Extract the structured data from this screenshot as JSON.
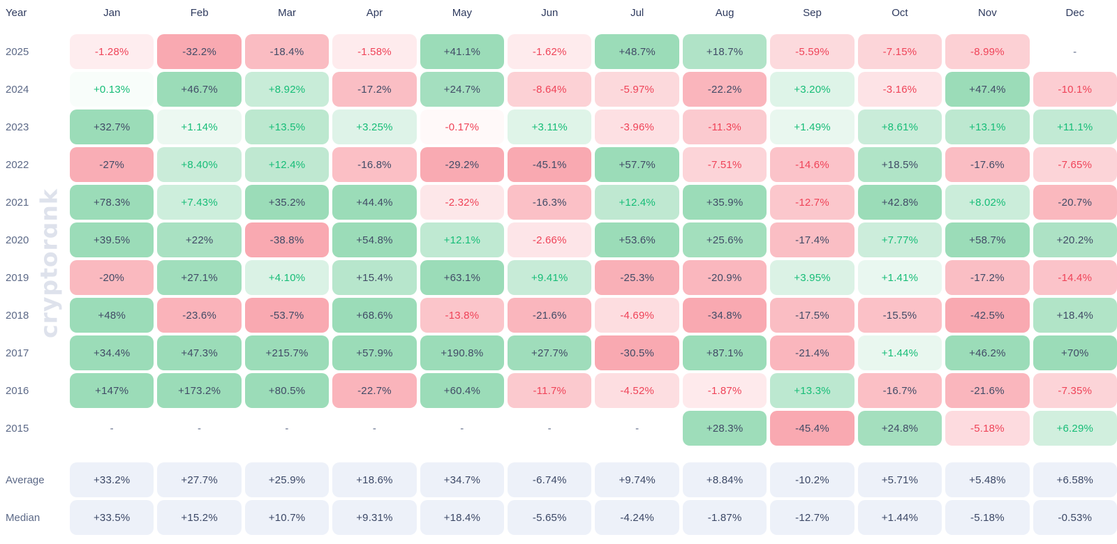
{
  "watermark": "cryptorɑnk",
  "header": {
    "corner_label": "Year"
  },
  "colors": {
    "header_text": "#2e3a5e",
    "label_text": "#5c6987",
    "neutral_text": "#414b66",
    "positive_text": "#16bd77",
    "negative_text": "#ef4358",
    "dash_text": "#5f6b88",
    "green_cap": "#9bdcb8",
    "red_cap": "#f9a9b1",
    "summary_bg": "#edf1f9",
    "summary_text": "#3b4765",
    "watermark": "#dee2ec"
  },
  "chart_data": {
    "type": "heatmap",
    "corner_label": "Year",
    "value_unit": "%",
    "columns": [
      "Jan",
      "Feb",
      "Mar",
      "Apr",
      "May",
      "Jun",
      "Jul",
      "Aug",
      "Sep",
      "Oct",
      "Nov",
      "Dec"
    ],
    "rows": [
      {
        "year": "2025",
        "values": [
          "-1.28%",
          "-32.2%",
          "-18.4%",
          "-1.58%",
          "+41.1%",
          "-1.62%",
          "+48.7%",
          "+18.7%",
          "-5.59%",
          "-7.15%",
          "-8.99%",
          "-"
        ]
      },
      {
        "year": "2024",
        "values": [
          "+0.13%",
          "+46.7%",
          "+8.92%",
          "-17.2%",
          "+24.7%",
          "-8.64%",
          "-5.97%",
          "-22.2%",
          "+3.20%",
          "-3.16%",
          "+47.4%",
          "-10.1%"
        ]
      },
      {
        "year": "2023",
        "values": [
          "+32.7%",
          "+1.14%",
          "+13.5%",
          "+3.25%",
          "-0.17%",
          "+3.11%",
          "-3.96%",
          "-11.3%",
          "+1.49%",
          "+8.61%",
          "+13.1%",
          "+11.1%"
        ]
      },
      {
        "year": "2022",
        "values": [
          "-27%",
          "+8.40%",
          "+12.4%",
          "-16.8%",
          "-29.2%",
          "-45.1%",
          "+57.7%",
          "-7.51%",
          "-14.6%",
          "+18.5%",
          "-17.6%",
          "-7.65%"
        ]
      },
      {
        "year": "2021",
        "values": [
          "+78.3%",
          "+7.43%",
          "+35.2%",
          "+44.4%",
          "-2.32%",
          "-16.3%",
          "+12.4%",
          "+35.9%",
          "-12.7%",
          "+42.8%",
          "+8.02%",
          "-20.7%"
        ]
      },
      {
        "year": "2020",
        "values": [
          "+39.5%",
          "+22%",
          "-38.8%",
          "+54.8%",
          "+12.1%",
          "-2.66%",
          "+53.6%",
          "+25.6%",
          "-17.4%",
          "+7.77%",
          "+58.7%",
          "+20.2%"
        ]
      },
      {
        "year": "2019",
        "values": [
          "-20%",
          "+27.1%",
          "+4.10%",
          "+15.4%",
          "+63.1%",
          "+9.41%",
          "-25.3%",
          "-20.9%",
          "+3.95%",
          "+1.41%",
          "-17.2%",
          "-14.4%"
        ]
      },
      {
        "year": "2018",
        "values": [
          "+48%",
          "-23.6%",
          "-53.7%",
          "+68.6%",
          "-13.8%",
          "-21.6%",
          "-4.69%",
          "-34.8%",
          "-17.5%",
          "-15.5%",
          "-42.5%",
          "+18.4%"
        ]
      },
      {
        "year": "2017",
        "values": [
          "+34.4%",
          "+47.3%",
          "+215.7%",
          "+57.9%",
          "+190.8%",
          "+27.7%",
          "-30.5%",
          "+87.1%",
          "-21.4%",
          "+1.44%",
          "+46.2%",
          "+70%"
        ]
      },
      {
        "year": "2016",
        "values": [
          "+147%",
          "+173.2%",
          "+80.5%",
          "-22.7%",
          "+60.4%",
          "-11.7%",
          "-4.52%",
          "-1.87%",
          "+13.3%",
          "-16.7%",
          "-21.6%",
          "-7.35%"
        ]
      },
      {
        "year": "2015",
        "values": [
          "-",
          "-",
          "-",
          "-",
          "-",
          "-",
          "-",
          "+28.3%",
          "-45.4%",
          "+24.8%",
          "-5.18%",
          "+6.29%"
        ]
      }
    ],
    "summary": [
      {
        "label": "Average",
        "values": [
          "+33.2%",
          "+27.7%",
          "+25.9%",
          "+18.6%",
          "+34.7%",
          "-6.74%",
          "+9.74%",
          "+8.84%",
          "-10.2%",
          "+5.71%",
          "+5.48%",
          "+6.58%"
        ]
      },
      {
        "label": "Median",
        "values": [
          "+33.5%",
          "+15.2%",
          "+10.7%",
          "+9.31%",
          "+18.4%",
          "-5.65%",
          "-4.24%",
          "-1.87%",
          "-12.7%",
          "+1.44%",
          "-5.18%",
          "-0.53%"
        ]
      }
    ]
  }
}
